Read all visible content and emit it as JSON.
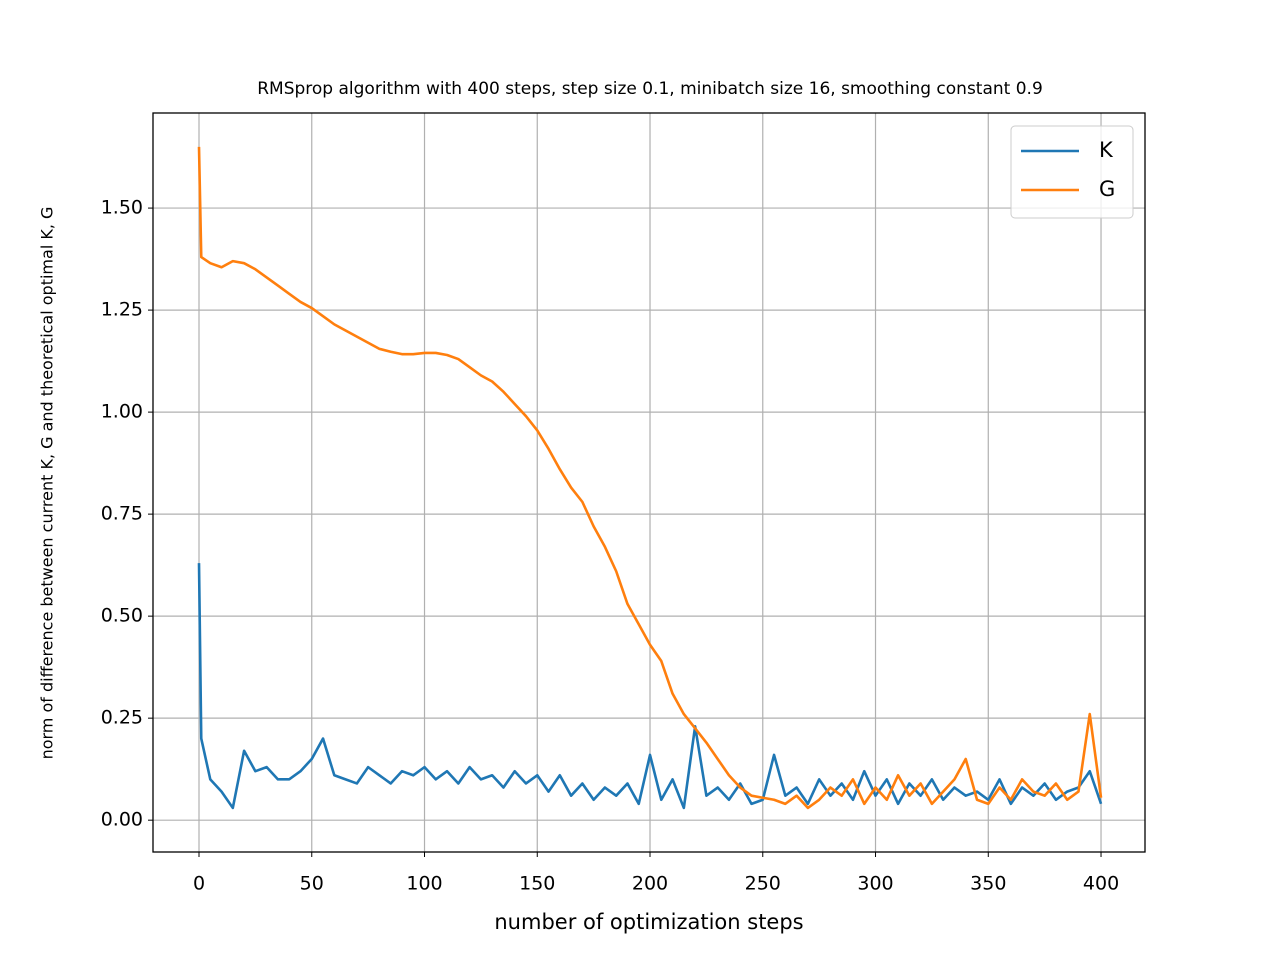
{
  "chart_data": {
    "type": "line",
    "title": "RMSprop algorithm with 400 steps, step size 0.1, minibatch size 16, smoothing constant 0.9",
    "x_label": "number of optimization steps",
    "y_label": "norm of difference between current K, G and theoretical optimal K, G",
    "x": [
      0,
      1,
      5,
      10,
      15,
      20,
      25,
      30,
      35,
      40,
      45,
      50,
      55,
      60,
      65,
      70,
      75,
      80,
      85,
      90,
      95,
      100,
      105,
      110,
      115,
      120,
      125,
      130,
      135,
      140,
      145,
      150,
      155,
      160,
      165,
      170,
      175,
      180,
      185,
      190,
      195,
      200,
      205,
      210,
      215,
      220,
      225,
      230,
      235,
      240,
      245,
      250,
      255,
      260,
      265,
      270,
      275,
      280,
      285,
      290,
      295,
      300,
      305,
      310,
      315,
      320,
      325,
      330,
      335,
      340,
      345,
      350,
      355,
      360,
      365,
      370,
      375,
      380,
      385,
      390,
      395,
      400
    ],
    "series": [
      {
        "name": "K",
        "color": "#1f77b4",
        "values": [
          0.63,
          0.2,
          0.1,
          0.07,
          0.03,
          0.17,
          0.12,
          0.13,
          0.1,
          0.1,
          0.12,
          0.15,
          0.2,
          0.11,
          0.1,
          0.09,
          0.13,
          0.11,
          0.09,
          0.12,
          0.11,
          0.13,
          0.1,
          0.12,
          0.09,
          0.13,
          0.1,
          0.11,
          0.08,
          0.12,
          0.09,
          0.11,
          0.07,
          0.11,
          0.06,
          0.09,
          0.05,
          0.08,
          0.06,
          0.09,
          0.04,
          0.16,
          0.05,
          0.1,
          0.03,
          0.23,
          0.06,
          0.08,
          0.05,
          0.09,
          0.04,
          0.05,
          0.16,
          0.06,
          0.08,
          0.04,
          0.1,
          0.06,
          0.09,
          0.05,
          0.12,
          0.06,
          0.1,
          0.04,
          0.09,
          0.06,
          0.1,
          0.05,
          0.08,
          0.06,
          0.07,
          0.05,
          0.1,
          0.04,
          0.08,
          0.06,
          0.09,
          0.05,
          0.07,
          0.08,
          0.12,
          0.04
        ]
      },
      {
        "name": "G",
        "color": "#ff7f0e",
        "values": [
          1.65,
          1.38,
          1.365,
          1.355,
          1.37,
          1.365,
          1.35,
          1.33,
          1.31,
          1.29,
          1.27,
          1.255,
          1.235,
          1.215,
          1.2,
          1.185,
          1.17,
          1.155,
          1.148,
          1.142,
          1.142,
          1.145,
          1.145,
          1.14,
          1.13,
          1.11,
          1.09,
          1.075,
          1.05,
          1.02,
          0.99,
          0.955,
          0.91,
          0.86,
          0.815,
          0.78,
          0.72,
          0.67,
          0.61,
          0.53,
          0.48,
          0.43,
          0.39,
          0.31,
          0.26,
          0.225,
          0.19,
          0.15,
          0.11,
          0.08,
          0.06,
          0.055,
          0.05,
          0.04,
          0.06,
          0.03,
          0.05,
          0.08,
          0.06,
          0.1,
          0.04,
          0.08,
          0.05,
          0.11,
          0.06,
          0.09,
          0.04,
          0.07,
          0.1,
          0.15,
          0.05,
          0.04,
          0.08,
          0.05,
          0.1,
          0.07,
          0.06,
          0.09,
          0.05,
          0.07,
          0.26,
          0.055
        ]
      }
    ],
    "xlim": [
      -20.4,
      419.5
    ],
    "ylim": [
      -0.078,
      1.733
    ],
    "xticks": [
      0,
      50,
      100,
      150,
      200,
      250,
      300,
      350,
      400
    ],
    "yticks": [
      {
        "value": 0,
        "label": "0.00"
      },
      {
        "value": 0.25,
        "label": "0.25"
      },
      {
        "value": 0.5,
        "label": "0.50"
      },
      {
        "value": 0.75,
        "label": "0.75"
      },
      {
        "value": 1,
        "label": "1.00"
      },
      {
        "value": 1.25,
        "label": "1.25"
      },
      {
        "value": 1.5,
        "label": "1.50"
      }
    ],
    "grid": true,
    "legend": "upper-right"
  }
}
